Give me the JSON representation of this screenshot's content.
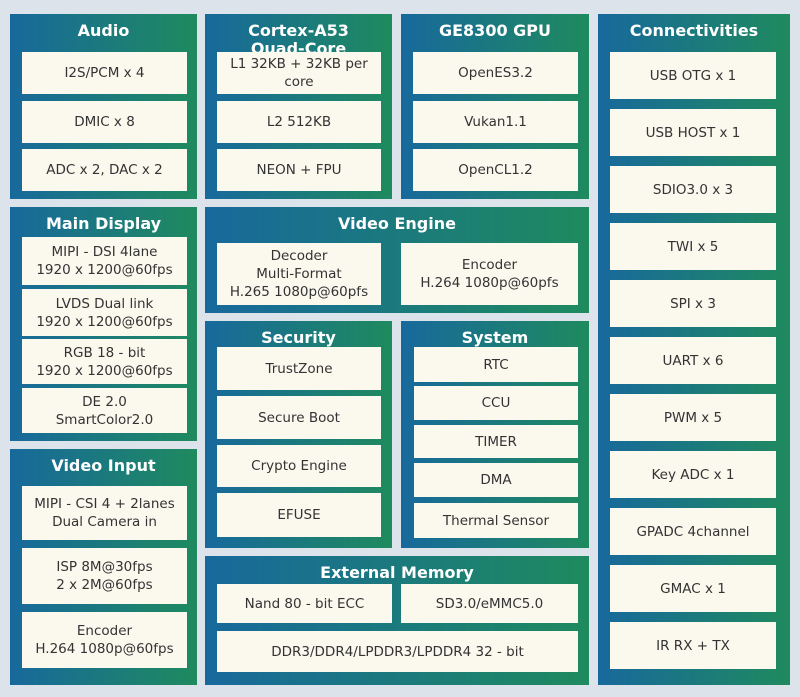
{
  "blocks": [
    {
      "title": [
        "Audio"
      ],
      "items": [
        [
          "I2S/PCM x 4"
        ],
        [
          "DMIC x 8"
        ],
        [
          "ADC x 2, DAC x 2"
        ]
      ]
    },
    {
      "title": [
        "Cortex-A53",
        "Quad-Core"
      ],
      "items": [
        [
          "L1 32KB + 32KB per core"
        ],
        [
          "L2 512KB"
        ],
        [
          "NEON + FPU"
        ]
      ]
    },
    {
      "title": [
        "GE8300 GPU"
      ],
      "items": [
        [
          "OpenES3.2"
        ],
        [
          "Vukan1.1"
        ],
        [
          "OpenCL1.2"
        ]
      ]
    },
    {
      "title": [
        "Connectivities"
      ],
      "items": [
        [
          "USB OTG x 1"
        ],
        [
          "USB HOST x 1"
        ],
        [
          "SDIO3.0 x 3"
        ],
        [
          "TWI x 5"
        ],
        [
          "SPI x 3"
        ],
        [
          "UART x 6"
        ],
        [
          "PWM x 5"
        ],
        [
          "Key ADC x 1"
        ],
        [
          "GPADC 4channel"
        ],
        [
          "GMAC x 1"
        ],
        [
          "IR RX + TX"
        ]
      ]
    },
    {
      "title": [
        "Main Display"
      ],
      "items": [
        [
          "MIPI - DSI 4lane",
          "1920 x 1200@60fps"
        ],
        [
          "LVDS Dual link",
          "1920 x 1200@60fps"
        ],
        [
          "RGB 18 - bit",
          "1920 x 1200@60fps"
        ],
        [
          "DE 2.0",
          "SmartColor2.0"
        ]
      ]
    },
    {
      "title": [
        "Video Input"
      ],
      "items": [
        [
          "MIPI - CSI 4 + 2lanes",
          "Dual Camera in"
        ],
        [
          "ISP 8M@30fps",
          "2 x 2M@60fps"
        ],
        [
          "Encoder",
          "H.264 1080p@60fps"
        ]
      ]
    },
    {
      "title": [
        "Video Engine"
      ],
      "items": [
        [
          "Decoder",
          "Multi-Format",
          "H.265 1080p@60pfs"
        ],
        [
          "Encoder",
          "H.264 1080p@60pfs"
        ]
      ]
    },
    {
      "title": [
        "Security"
      ],
      "items": [
        [
          "TrustZone"
        ],
        [
          "Secure Boot"
        ],
        [
          "Crypto Engine"
        ],
        [
          "EFUSE"
        ]
      ]
    },
    {
      "title": [
        "System"
      ],
      "items": [
        [
          "RTC"
        ],
        [
          "CCU"
        ],
        [
          "TIMER"
        ],
        [
          "DMA"
        ],
        [
          "Thermal Sensor"
        ]
      ]
    },
    {
      "title": [
        "External Memory"
      ],
      "items": [
        [
          "Nand 80 - bit ECC"
        ],
        [
          "SD3.0/eMMC5.0"
        ],
        [
          "DDR3/DDR4/LPDDR3/LPDDR4 32 - bit"
        ]
      ]
    }
  ]
}
